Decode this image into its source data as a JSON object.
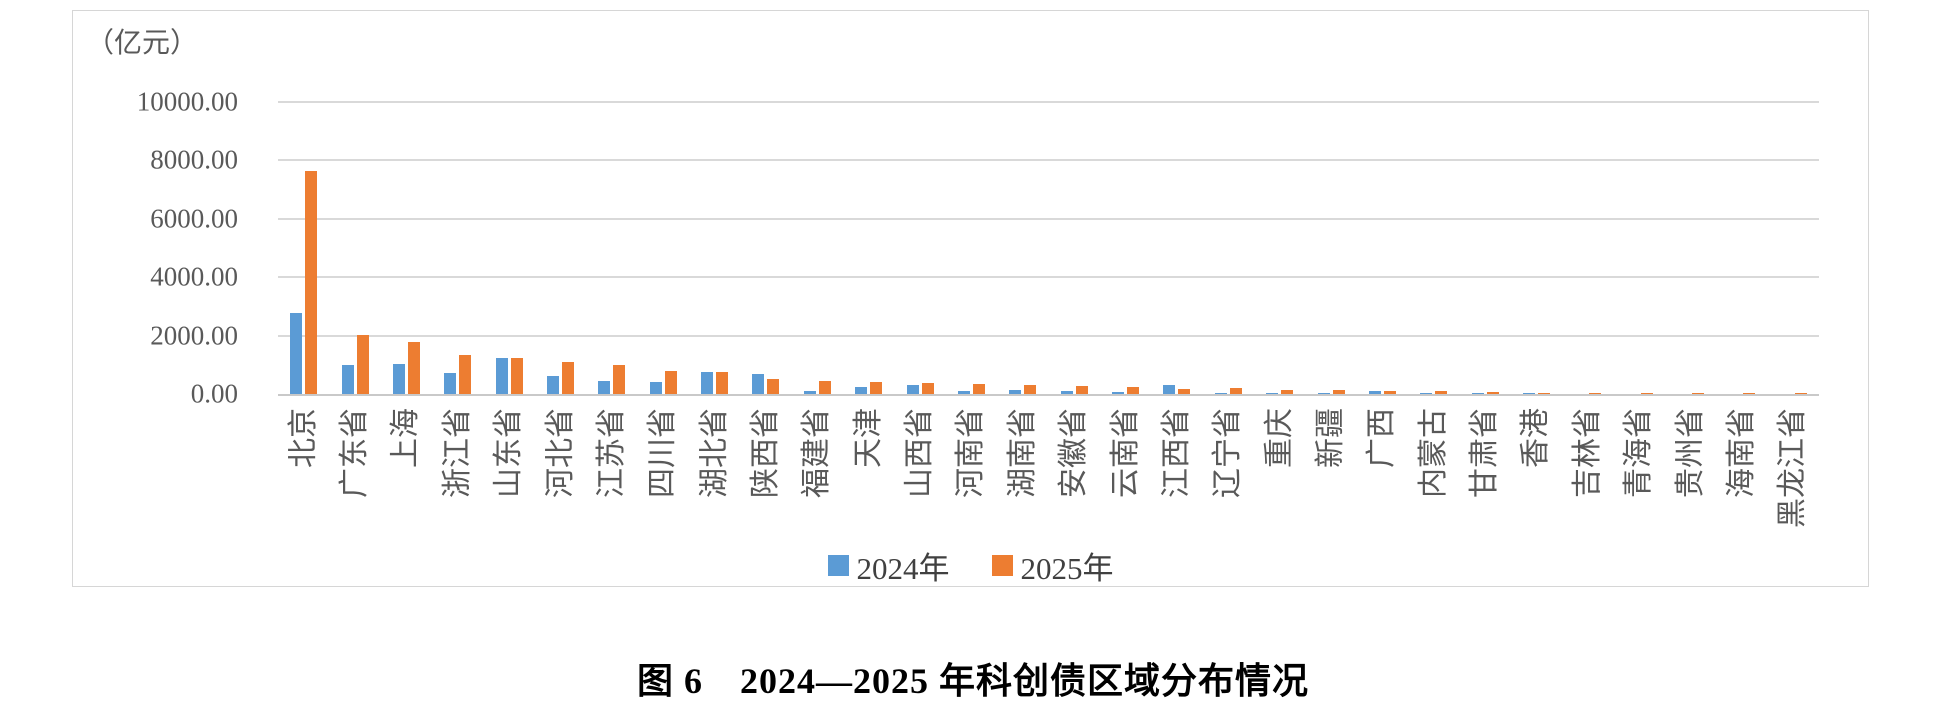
{
  "page": {
    "title": "图 6　2024—2025 年科创债区域分布情况"
  },
  "chart_data": {
    "type": "bar",
    "title": "图 6　2024—2025 年科创债区域分布情况",
    "unit_label": "（亿元）",
    "ylabel": "亿元",
    "ylim": [
      0,
      10000
    ],
    "ytick_step": 2000,
    "ytick_labels": [
      "0.00",
      "2000.00",
      "4000.00",
      "6000.00",
      "8000.00",
      "10000.00"
    ],
    "grid": true,
    "legend_position": "bottom-center",
    "gridline_color": "#d9d9d9",
    "categories": [
      "北京",
      "广东省",
      "上海",
      "浙江省",
      "山东省",
      "河北省",
      "江苏省",
      "四川省",
      "湖北省",
      "陕西省",
      "福建省",
      "天津",
      "山西省",
      "河南省",
      "湖南省",
      "安徽省",
      "云南省",
      "江西省",
      "辽宁省",
      "重庆",
      "新疆",
      "广西",
      "内蒙古",
      "甘肃省",
      "香港",
      "吉林省",
      "青海省",
      "贵州省",
      "海南省",
      "黑龙江省"
    ],
    "series": [
      {
        "name": "2024年",
        "color": "#5B9BD5",
        "values": [
          2770,
          980,
          1030,
          710,
          1220,
          600,
          460,
          400,
          750,
          690,
          110,
          240,
          300,
          120,
          150,
          115,
          70,
          320,
          45,
          15,
          45,
          90,
          10,
          5,
          35,
          0,
          0,
          0,
          0,
          0
        ]
      },
      {
        "name": "2025年",
        "color": "#ED7D31",
        "values": [
          7630,
          2030,
          1780,
          1350,
          1220,
          1090,
          1000,
          790,
          770,
          530,
          460,
          420,
          380,
          340,
          320,
          265,
          230,
          185,
          210,
          140,
          140,
          115,
          90,
          70,
          35,
          45,
          15,
          10,
          5,
          5
        ]
      }
    ]
  }
}
